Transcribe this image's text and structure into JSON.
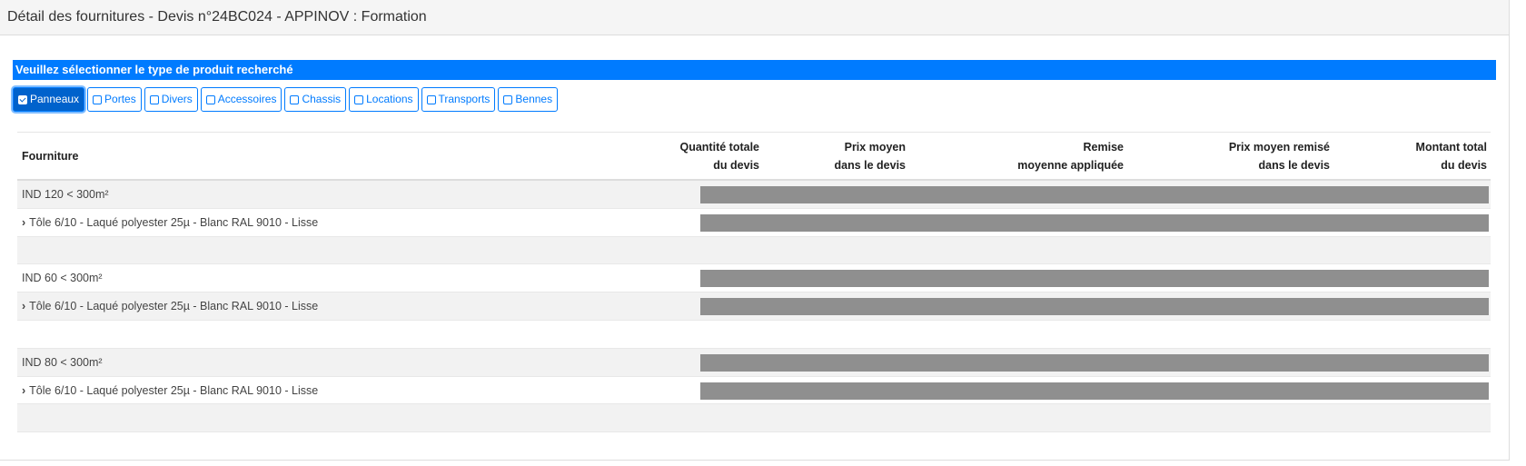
{
  "header": {
    "title": "Détail des fournitures - Devis n°24BC024 - APPINOV : Formation"
  },
  "filter": {
    "label": "Veuillez sélectionner le type de produit recherché",
    "buttons": [
      {
        "label": "Panneaux",
        "checked": true
      },
      {
        "label": "Portes",
        "checked": false
      },
      {
        "label": "Divers",
        "checked": false
      },
      {
        "label": "Accessoires",
        "checked": false
      },
      {
        "label": "Chassis",
        "checked": false
      },
      {
        "label": "Locations",
        "checked": false
      },
      {
        "label": "Transports",
        "checked": false
      },
      {
        "label": "Bennes",
        "checked": false
      }
    ]
  },
  "table": {
    "columns": {
      "fourniture": "Fourniture",
      "quantite": [
        "Quantité totale",
        "du devis"
      ],
      "prix": [
        "Prix moyen",
        "dans le devis"
      ],
      "remise": [
        "Remise",
        "moyenne appliquée"
      ],
      "prix_remise": [
        "Prix moyen remisé",
        "dans le devis"
      ],
      "montant": [
        "Montant total",
        "du devis"
      ]
    },
    "groups": [
      {
        "name": "IND 120 < 300m²",
        "item": "Tôle 6/10 - Laqué polyester 25µ - Blanc RAL 9010 - Lisse"
      },
      {
        "name": "IND 60 < 300m²",
        "item": "Tôle 6/10 - Laqué polyester 25µ - Blanc RAL 9010 - Lisse"
      },
      {
        "name": "IND 80 < 300m²",
        "item": "Tôle 6/10 - Laqué polyester 25µ - Blanc RAL 9010 - Lisse"
      }
    ]
  }
}
